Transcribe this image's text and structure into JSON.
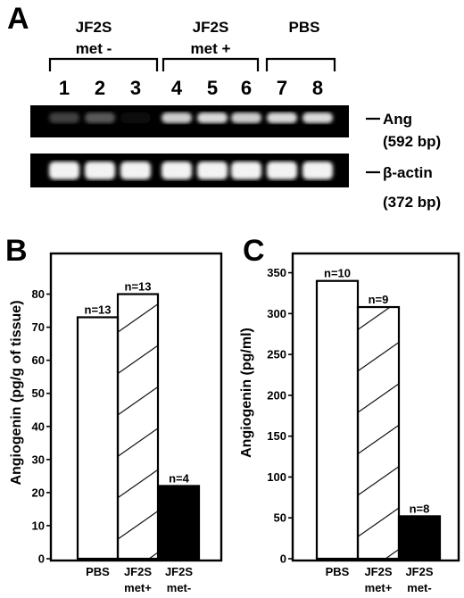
{
  "panel_a": {
    "letter": "A",
    "groups": [
      {
        "line1": "JF2S",
        "line2": "met -"
      },
      {
        "line1": "JF2S",
        "line2": "met +"
      },
      {
        "line1": "PBS",
        "line2": ""
      }
    ],
    "lanes": [
      "1",
      "2",
      "3",
      "4",
      "5",
      "6",
      "7",
      "8"
    ],
    "ang_band": {
      "label": "Ang",
      "size": "(592 bp)",
      "intensity": [
        0.25,
        0.35,
        0.05,
        0.8,
        0.85,
        0.8,
        0.85,
        0.85
      ]
    },
    "actin_band": {
      "label": "β-actin",
      "size": "(372 bp)",
      "intensity": [
        0.95,
        0.95,
        0.95,
        0.95,
        0.95,
        0.95,
        0.95,
        0.95
      ]
    }
  },
  "chart_data": [
    {
      "panel": "B",
      "type": "bar",
      "ylabel": "Angiogenin (pg/g of tissue)",
      "ylim": [
        0,
        85
      ],
      "yticks": [
        0,
        10,
        20,
        30,
        40,
        50,
        60,
        70,
        80
      ],
      "categories": [
        {
          "line1": "PBS",
          "line2": ""
        },
        {
          "line1": "JF2S",
          "line2": "met+"
        },
        {
          "line1": "JF2S",
          "line2": "met-"
        }
      ],
      "values": [
        73,
        80,
        22
      ],
      "n_labels": [
        "n=13",
        "n=13",
        "n=4"
      ],
      "fills": [
        "white",
        "hatch",
        "black"
      ]
    },
    {
      "panel": "C",
      "type": "bar",
      "ylabel": "Angiogenin (pg/ml)",
      "ylim": [
        0,
        355
      ],
      "yticks": [
        0,
        50,
        100,
        150,
        200,
        250,
        300,
        350
      ],
      "categories": [
        {
          "line1": "PBS",
          "line2": ""
        },
        {
          "line1": "JF2S",
          "line2": "met+"
        },
        {
          "line1": "JF2S",
          "line2": "met-"
        }
      ],
      "values": [
        340,
        308,
        52
      ],
      "n_labels": [
        "n=10",
        "n=9",
        "n=8"
      ],
      "fills": [
        "white",
        "hatch",
        "black"
      ]
    }
  ]
}
